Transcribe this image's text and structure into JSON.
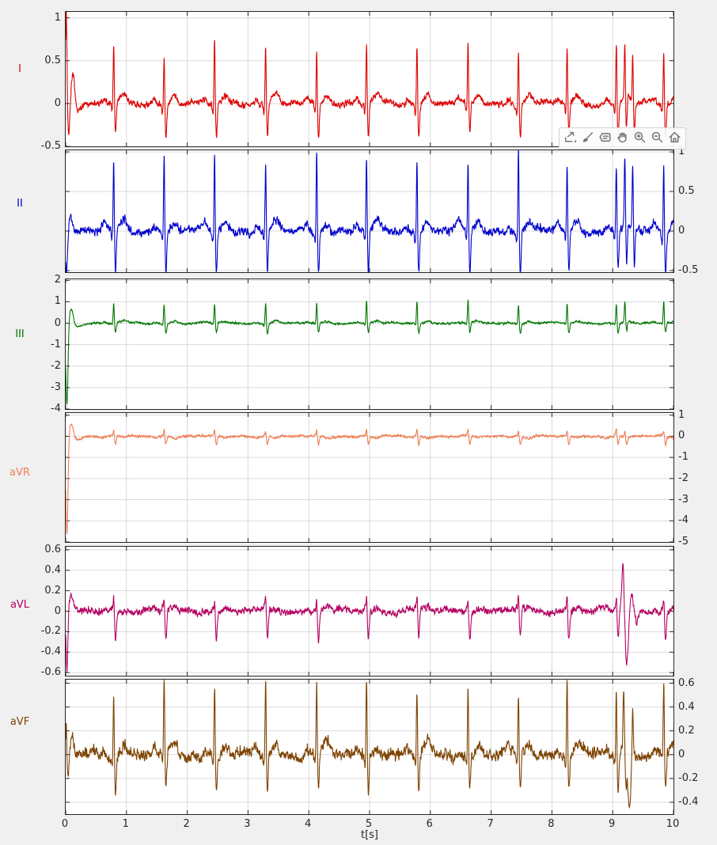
{
  "figure": {
    "background": "#f0f0f0",
    "plot_background": "#ffffff",
    "grid_color": "#d9d9d9",
    "axis_color": "#262626"
  },
  "toolbar": {
    "icons": [
      {
        "name": "export-icon",
        "label": "export"
      },
      {
        "name": "brush-icon",
        "label": "brush"
      },
      {
        "name": "data-tips-icon",
        "label": "data tips"
      },
      {
        "name": "pan-icon",
        "label": "pan"
      },
      {
        "name": "zoom-in-icon",
        "label": "zoom in"
      },
      {
        "name": "zoom-out-icon",
        "label": "zoom out"
      },
      {
        "name": "home-icon",
        "label": "restore view"
      }
    ]
  },
  "chart_data": {
    "type": "line",
    "title": "",
    "xlabel": "t[s]",
    "xlim": [
      0,
      10
    ],
    "x_ticks": [
      0,
      1,
      2,
      3,
      4,
      5,
      6,
      7,
      8,
      9,
      10
    ],
    "grid": true,
    "sample_rate_hz": 300,
    "description": "Six stacked ECG limb-lead traces (I, II, III, aVR, aVL, aVF) over 10 seconds, ~72 bpm, with a start-up transient at t=0 and an ectopic/artifact event near t=9.2 s",
    "beat_times_s": [
      0.79,
      1.62,
      2.45,
      3.29,
      4.13,
      4.95,
      5.78,
      6.62,
      7.45,
      8.25,
      9.06,
      9.84
    ],
    "leads": [
      {
        "label": "I",
        "color": "#dd0000",
        "ytick_side": "left",
        "ylim": [
          -0.5,
          1.07
        ],
        "yticks": [
          1,
          0.5,
          0,
          -0.5
        ],
        "beat": {
          "p": 0.05,
          "q": -0.1,
          "r": 0.68,
          "s": -0.38,
          "t": 0.1
        },
        "noise": 0.035,
        "onset": [
          [
            0.01,
            0.012,
            1.15
          ],
          [
            0.05,
            0.02,
            -0.35
          ],
          [
            0.12,
            0.03,
            0.38
          ],
          [
            0.2,
            0.05,
            -0.1
          ]
        ],
        "ectopic": [
          [
            9.2,
            0.009,
            0.62
          ],
          [
            9.225,
            0.012,
            -0.4
          ],
          [
            9.33,
            0.009,
            0.58
          ],
          [
            9.355,
            0.012,
            -0.35
          ]
        ]
      },
      {
        "label": "II",
        "color": "#0000cc",
        "ytick_side": "right",
        "ylim": [
          -0.52,
          1.02
        ],
        "yticks": [
          1,
          0.5,
          0,
          -0.5
        ],
        "beat": {
          "p": 0.08,
          "q": -0.12,
          "r": 0.98,
          "s": -0.52,
          "t": 0.12
        },
        "noise": 0.05,
        "onset": [
          [
            0.015,
            0.015,
            -0.55
          ],
          [
            0.08,
            0.03,
            0.2
          ]
        ],
        "ectopic": [
          [
            9.2,
            0.009,
            0.9
          ],
          [
            9.23,
            0.012,
            -0.5
          ],
          [
            9.33,
            0.009,
            0.85
          ],
          [
            9.355,
            0.012,
            -0.45
          ]
        ]
      },
      {
        "label": "III",
        "color": "#007700",
        "ytick_side": "left",
        "ylim": [
          -4.0,
          2.05
        ],
        "yticks": [
          2,
          1,
          0,
          -1,
          -2,
          -3,
          -4
        ],
        "beat": {
          "p": 0.04,
          "q": -0.05,
          "r": 1.0,
          "s": -0.45,
          "t": 0.1
        },
        "noise": 0.045,
        "onset": [
          [
            0.02,
            0.018,
            -3.9
          ],
          [
            0.09,
            0.035,
            0.75
          ],
          [
            0.2,
            0.08,
            -0.15
          ]
        ],
        "ectopic": [
          [
            9.2,
            0.009,
            0.9
          ],
          [
            9.23,
            0.012,
            -0.45
          ]
        ]
      },
      {
        "label": "aVR",
        "color": "#ef7d52",
        "ytick_side": "right",
        "ylim": [
          -5.0,
          1.1
        ],
        "yticks": [
          1,
          0,
          -1,
          -2,
          -3,
          -4,
          -5
        ],
        "beat": {
          "p": -0.04,
          "q": 0.05,
          "r": 0.3,
          "s": -0.38,
          "t": -0.08
        },
        "noise": 0.05,
        "onset": [
          [
            0.02,
            0.018,
            -4.7
          ],
          [
            0.09,
            0.035,
            0.65
          ],
          [
            0.2,
            0.08,
            -0.12
          ]
        ],
        "ectopic": [
          [
            9.2,
            0.01,
            0.3
          ],
          [
            9.23,
            0.012,
            -0.35
          ]
        ]
      },
      {
        "label": "aVL",
        "color": "#b40062",
        "ytick_side": "left",
        "ylim": [
          -0.63,
          0.63
        ],
        "yticks": [
          0.6,
          0.4,
          0.2,
          0,
          -0.2,
          -0.4,
          -0.6
        ],
        "beat": {
          "p": 0.02,
          "q": 0.04,
          "r": 0.13,
          "s": -0.28,
          "t": 0.03
        },
        "noise": 0.032,
        "onset": [
          [
            0.02,
            0.015,
            -0.6
          ],
          [
            0.09,
            0.03,
            0.13
          ]
        ],
        "ectopic": [
          [
            9.17,
            0.02,
            0.5
          ],
          [
            9.23,
            0.03,
            -0.52
          ],
          [
            9.31,
            0.03,
            0.18
          ],
          [
            9.39,
            0.03,
            -0.1
          ]
        ]
      },
      {
        "label": "aVF",
        "color": "#7d4200",
        "ytick_side": "right",
        "ylim": [
          -0.5,
          0.63
        ],
        "yticks": [
          0.6,
          0.4,
          0.2,
          0,
          -0.2,
          -0.4
        ],
        "beat": {
          "p": 0.05,
          "q": -0.08,
          "r": 0.62,
          "s": -0.3,
          "t": 0.09
        },
        "noise": 0.045,
        "onset": [
          [
            0.01,
            0.01,
            0.3
          ],
          [
            0.04,
            0.02,
            -0.2
          ],
          [
            0.1,
            0.03,
            0.15
          ]
        ],
        "ectopic": [
          [
            9.18,
            0.01,
            0.45
          ],
          [
            9.22,
            0.012,
            -0.3
          ],
          [
            9.27,
            0.025,
            -0.5
          ],
          [
            9.33,
            0.01,
            0.42
          ]
        ]
      }
    ]
  }
}
